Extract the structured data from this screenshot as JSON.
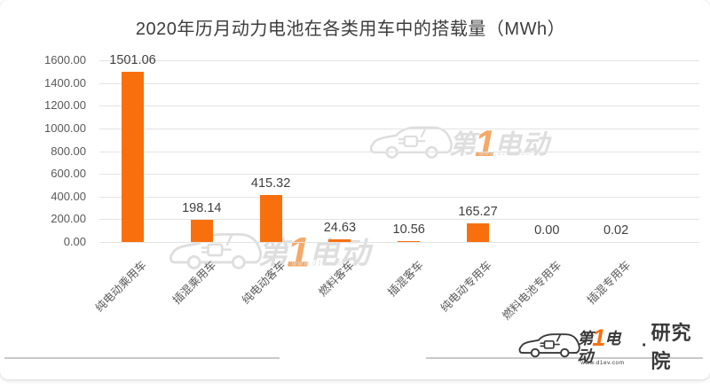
{
  "page": {
    "title": "2020年历月动力电池在各类用车中的搭载量（MWh）"
  },
  "chart_data": {
    "type": "bar",
    "title": "2020年历月动力电池在各类用车中的搭载量（MWh）",
    "categories": [
      "纯电动乘用车",
      "插混乘用车",
      "纯电动客车",
      "燃料客车",
      "插混客车",
      "纯电动专用车",
      "燃料电池专用车",
      "插混专用车"
    ],
    "values": [
      1501.06,
      198.14,
      415.32,
      24.63,
      10.56,
      165.27,
      0.0,
      0.02
    ],
    "value_labels": [
      "1501.06",
      "198.14",
      "415.32",
      "24.63",
      "10.56",
      "165.27",
      "0.00",
      "0.02"
    ],
    "xlabel": "",
    "ylabel": "",
    "ylim": [
      0,
      1600
    ],
    "ytick_labels": [
      "1600.00",
      "1400.00",
      "1200.00",
      "1000.00",
      "800.00",
      "600.00",
      "400.00",
      "200.00",
      "0.00"
    ],
    "grid": true,
    "legend": "none",
    "bar_color": "#F8700E"
  },
  "watermark": {
    "brand_prefix": "第",
    "brand_number": "1",
    "brand_suffix": "电动",
    "url": "www.d1ev.com"
  },
  "footer_logo": {
    "prefix": "第",
    "number": "1",
    "suffix": "电动",
    "dot": "·",
    "org": "研究院",
    "url": "www.d1ev.com"
  },
  "colors": {
    "bar": "#F8700E",
    "title_text": "#3D3D3D",
    "axis_text": "#595959",
    "gridline": "#E3E3E3",
    "watermark_gray": "#DEDEDE",
    "watermark_orange": "#F5A968",
    "logo_dark": "#3A3A3A",
    "divider_gray": "#C9C9C9"
  }
}
